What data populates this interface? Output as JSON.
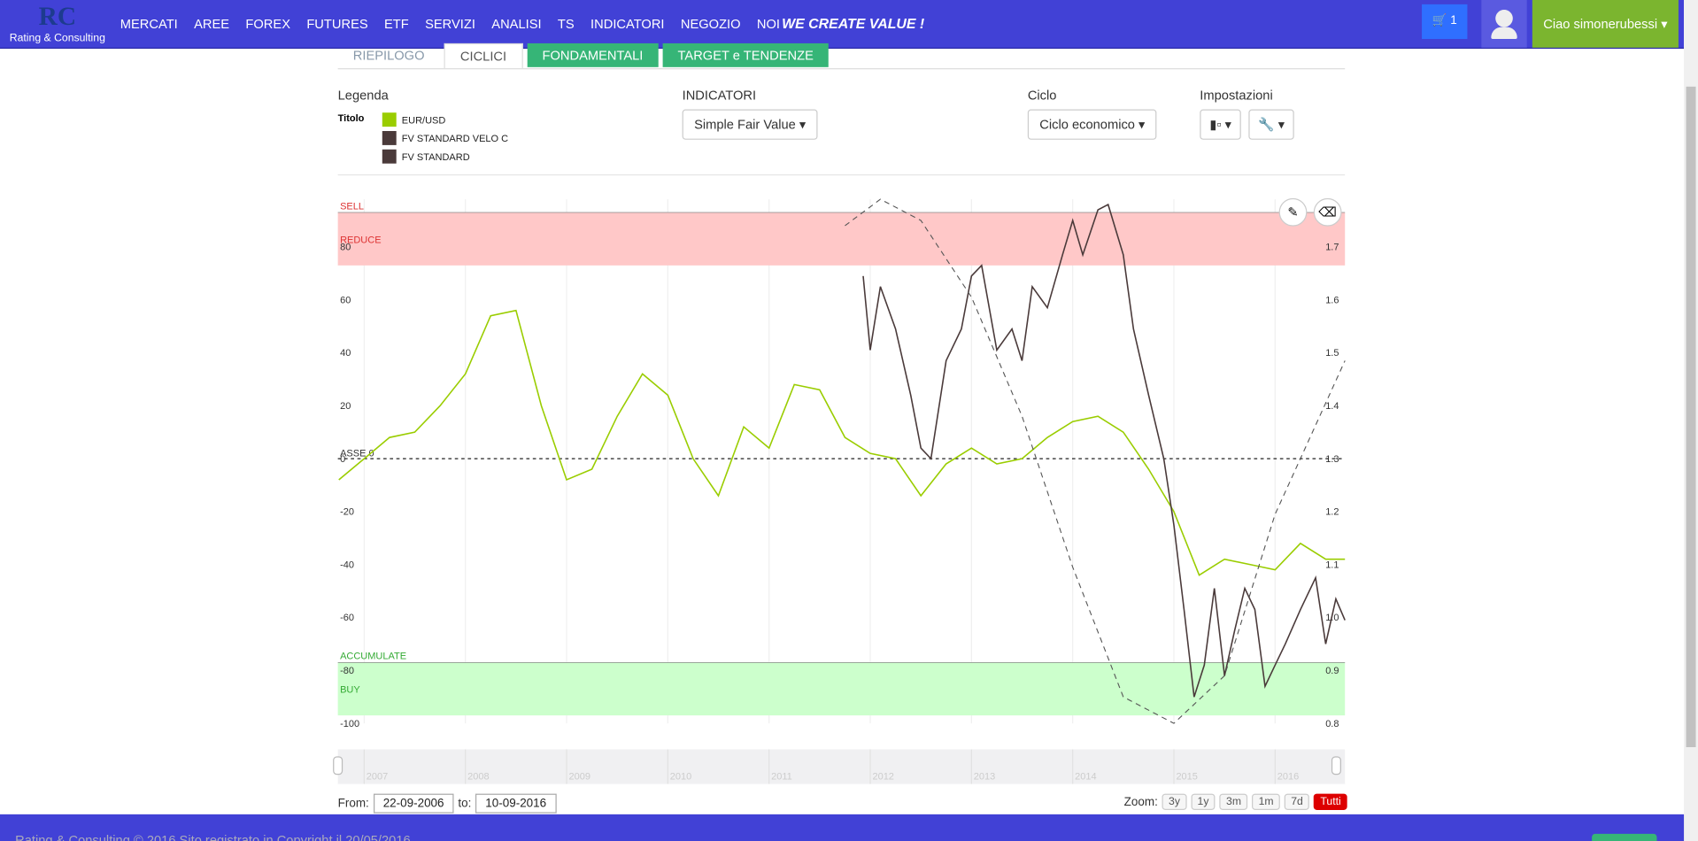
{
  "navbar": {
    "brand": "Rating & Consulting",
    "menu": [
      "MERCATI",
      "AREE",
      "FOREX",
      "FUTURES",
      "ETF",
      "SERVIZI",
      "ANALISI",
      "TS",
      "INDICATORI",
      "NEGOZIO",
      "NOI"
    ],
    "slogan": "WE CREATE VALUE !",
    "cart": "1",
    "user": "Ciao simonerubessi"
  },
  "tabs": [
    {
      "label": "RIEPILOGO",
      "style": "plain"
    },
    {
      "label": "CICLICI",
      "style": "active"
    },
    {
      "label": "FONDAMENTALI",
      "style": "green"
    },
    {
      "label": "TARGET e TENDENZE",
      "style": "green"
    }
  ],
  "controls": {
    "legend_heading": "Legenda",
    "indicators_heading": "INDICATORI",
    "indicator": "Simple Fair Value",
    "cycle_heading": "Ciclo",
    "cycle": "Ciclo economico",
    "settings_heading": "Impostazioni"
  },
  "chart_data": {
    "type": "line",
    "legend": {
      "title": "Titolo",
      "entries": [
        {
          "name": "EUR/USD",
          "color": "#9acd00"
        },
        {
          "name": "FV STANDARD VELO C",
          "color": "#4a3a3a"
        },
        {
          "name": "FV STANDARD",
          "color": "#4a3a3a"
        }
      ]
    },
    "xlim": [
      2006.74,
      2016.69
    ],
    "xticks": [
      2007,
      2008,
      2009,
      2010,
      2011,
      2012,
      2013,
      2014,
      2015,
      2016
    ],
    "ylim": [
      -100,
      98
    ],
    "yticks": [
      -100,
      -80,
      -60,
      -40,
      -20,
      0,
      20,
      40,
      60,
      80
    ],
    "y2lim": [
      0.8,
      1.79
    ],
    "y2ticks": [
      0.8,
      0.9,
      {
        "value": 1,
        "label": "1.0"
      },
      1.1,
      1.2,
      1.3,
      1.4,
      1.5,
      1.6,
      1.7
    ],
    "zones": [
      {
        "from": 73,
        "to": 93,
        "color": "#ffc8c8",
        "text_color": "#d33",
        "labels": [
          "SELL",
          "REDUCE"
        ]
      },
      {
        "from": -97,
        "to": -77,
        "color": "#ccffcc",
        "text_color": "#3a3",
        "labels": [
          "ACCUMULATE",
          "BUY"
        ]
      }
    ],
    "axis_line": {
      "value": 0,
      "label": "ASSE 0"
    },
    "series": [
      {
        "color": "#9acd00",
        "axis": "y2",
        "x": [
          2006.75,
          2007.0,
          2007.25,
          2007.5,
          2007.75,
          2008.0,
          2008.25,
          2008.5,
          2008.75,
          2009.0,
          2009.25,
          2009.5,
          2009.75,
          2010.0,
          2010.25,
          2010.5,
          2010.75,
          2011.0,
          2011.25,
          2011.5,
          2011.75,
          2012.0,
          2012.25,
          2012.5,
          2012.75,
          2013.0,
          2013.25,
          2013.5,
          2013.75,
          2014.0,
          2014.25,
          2014.5,
          2014.75,
          2015.0,
          2015.25,
          2015.5,
          2015.75,
          2016.0,
          2016.25,
          2016.5,
          2016.69
        ],
        "values": [
          1.26,
          1.3,
          1.34,
          1.35,
          1.4,
          1.46,
          1.57,
          1.58,
          1.4,
          1.26,
          1.28,
          1.38,
          1.46,
          1.42,
          1.3,
          1.23,
          1.36,
          1.32,
          1.44,
          1.43,
          1.34,
          1.31,
          1.3,
          1.23,
          1.29,
          1.32,
          1.29,
          1.3,
          1.34,
          1.37,
          1.38,
          1.35,
          1.28,
          1.2,
          1.08,
          1.11,
          1.1,
          1.09,
          1.14,
          1.11,
          1.11
        ]
      },
      {
        "color": "#4a3a3a",
        "x": [
          2011.93,
          2012.0,
          2012.1,
          2012.25,
          2012.4,
          2012.5,
          2012.6,
          2012.75,
          2012.9,
          2013.0,
          2013.1,
          2013.25,
          2013.4,
          2013.5,
          2013.6,
          2013.75,
          2013.9,
          2014.0,
          2014.1,
          2014.25,
          2014.35,
          2014.5,
          2014.6,
          2014.75,
          2014.9,
          2015.0,
          2015.1,
          2015.2,
          2015.3,
          2015.4,
          2015.5,
          2015.6,
          2015.7,
          2015.8,
          2015.9,
          2016.0,
          2016.1,
          2016.25,
          2016.4,
          2016.5,
          2016.6,
          2016.69
        ],
        "values": [
          69,
          41,
          65,
          49,
          24,
          4,
          0,
          37,
          49,
          69,
          73,
          41,
          49,
          37,
          65,
          57,
          77,
          90,
          77,
          94,
          96,
          77,
          49,
          24,
          0,
          -25,
          -57,
          -90,
          -78,
          -49,
          -82,
          -65,
          -49,
          -57,
          -86,
          -78,
          -70,
          -57,
          -45,
          -70,
          -53,
          -61
        ]
      },
      {
        "color": "#555",
        "dash": true,
        "x": [
          2011.75,
          2012.1,
          2012.5,
          2013.0,
          2013.5,
          2014.0,
          2014.5,
          2015.0,
          2015.5,
          2016.0,
          2016.69
        ],
        "values": [
          88,
          98,
          90,
          61,
          16,
          -41,
          -90,
          -100,
          -82,
          -21,
          37
        ]
      }
    ]
  },
  "range": {
    "from_label": "From:",
    "from": "22-09-2006",
    "to_label": "to:",
    "to": "10-09-2016"
  },
  "zoom": {
    "label": "Zoom:",
    "buttons": [
      "3y",
      "1y",
      "3m",
      "1m",
      "7d",
      "Tutti"
    ],
    "selected": 5
  },
  "footer": "Rating & Consulting © 2016 Sito registrato in Copyright il 20/05/2016"
}
